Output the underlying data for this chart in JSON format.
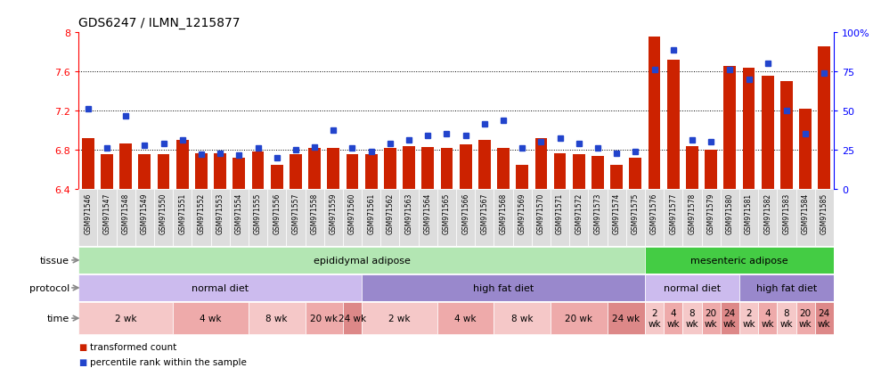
{
  "title": "GDS6247 / ILMN_1215877",
  "samples": [
    "GSM971546",
    "GSM971547",
    "GSM971548",
    "GSM971549",
    "GSM971550",
    "GSM971551",
    "GSM971552",
    "GSM971553",
    "GSM971554",
    "GSM971555",
    "GSM971556",
    "GSM971557",
    "GSM971558",
    "GSM971559",
    "GSM971560",
    "GSM971561",
    "GSM971562",
    "GSM971563",
    "GSM971564",
    "GSM971565",
    "GSM971566",
    "GSM971567",
    "GSM971568",
    "GSM971569",
    "GSM971570",
    "GSM971571",
    "GSM971572",
    "GSM971573",
    "GSM971574",
    "GSM971575",
    "GSM971576",
    "GSM971577",
    "GSM971578",
    "GSM971579",
    "GSM971580",
    "GSM971581",
    "GSM971582",
    "GSM971583",
    "GSM971584",
    "GSM971585"
  ],
  "bar_values": [
    6.92,
    6.76,
    6.87,
    6.76,
    6.76,
    6.9,
    6.77,
    6.77,
    6.72,
    6.78,
    6.65,
    6.76,
    6.82,
    6.82,
    6.76,
    6.76,
    6.82,
    6.84,
    6.83,
    6.82,
    6.86,
    6.9,
    6.82,
    6.65,
    6.92,
    6.77,
    6.76,
    6.74,
    6.65,
    6.72,
    7.96,
    7.72,
    6.84,
    6.8,
    7.66,
    7.64,
    7.56,
    7.5,
    7.22,
    7.86
  ],
  "percentile_values": [
    7.22,
    6.82,
    7.15,
    6.85,
    6.87,
    6.9,
    6.76,
    6.77,
    6.75,
    6.82,
    6.72,
    6.8,
    6.83,
    7.0,
    6.82,
    6.78,
    6.87,
    6.9,
    6.95,
    6.97,
    6.95,
    7.07,
    7.1,
    6.82,
    6.88,
    6.92,
    6.87,
    6.82,
    6.77,
    6.78,
    7.62,
    7.82,
    6.9,
    6.88,
    7.62,
    7.52,
    7.68,
    7.2,
    6.97,
    7.58
  ],
  "bar_color": "#cc2200",
  "dot_color": "#2244cc",
  "ymin": 6.4,
  "ymax": 8.0,
  "yticks_left": [
    6.4,
    6.8,
    7.2,
    7.6,
    8.0
  ],
  "yticks_right": [
    0,
    25,
    50,
    75,
    100
  ],
  "grid_values": [
    6.8,
    7.2,
    7.6
  ],
  "tissue_regions": [
    {
      "label": "epididymal adipose",
      "start": 0,
      "end": 30,
      "color": "#b3e6b3"
    },
    {
      "label": "mesenteric adipose",
      "start": 30,
      "end": 40,
      "color": "#44cc44"
    }
  ],
  "protocol_regions": [
    {
      "label": "normal diet",
      "start": 0,
      "end": 15,
      "color": "#ccbbee"
    },
    {
      "label": "high fat diet",
      "start": 15,
      "end": 30,
      "color": "#9988cc"
    },
    {
      "label": "normal diet",
      "start": 30,
      "end": 35,
      "color": "#ccbbee"
    },
    {
      "label": "high fat diet",
      "start": 35,
      "end": 40,
      "color": "#9988cc"
    }
  ],
  "time_regions": [
    {
      "label": "2 wk",
      "start": 0,
      "end": 5,
      "color": "#f5c8c8"
    },
    {
      "label": "4 wk",
      "start": 5,
      "end": 9,
      "color": "#eeaaaa"
    },
    {
      "label": "8 wk",
      "start": 9,
      "end": 12,
      "color": "#f5c8c8"
    },
    {
      "label": "20 wk",
      "start": 12,
      "end": 14,
      "color": "#eeaaaa"
    },
    {
      "label": "24 wk",
      "start": 14,
      "end": 15,
      "color": "#dd8888"
    },
    {
      "label": "2 wk",
      "start": 15,
      "end": 19,
      "color": "#f5c8c8"
    },
    {
      "label": "4 wk",
      "start": 19,
      "end": 22,
      "color": "#eeaaaa"
    },
    {
      "label": "8 wk",
      "start": 22,
      "end": 25,
      "color": "#f5c8c8"
    },
    {
      "label": "20 wk",
      "start": 25,
      "end": 28,
      "color": "#eeaaaa"
    },
    {
      "label": "24 wk",
      "start": 28,
      "end": 30,
      "color": "#dd8888"
    },
    {
      "label": "2\nwk",
      "start": 30,
      "end": 31,
      "color": "#f5c8c8"
    },
    {
      "label": "4\nwk",
      "start": 31,
      "end": 32,
      "color": "#eeaaaa"
    },
    {
      "label": "8\nwk",
      "start": 32,
      "end": 33,
      "color": "#f5c8c8"
    },
    {
      "label": "20\nwk",
      "start": 33,
      "end": 34,
      "color": "#eeaaaa"
    },
    {
      "label": "24\nwk",
      "start": 34,
      "end": 35,
      "color": "#dd8888"
    },
    {
      "label": "2\nwk",
      "start": 35,
      "end": 36,
      "color": "#f5c8c8"
    },
    {
      "label": "4\nwk",
      "start": 36,
      "end": 37,
      "color": "#eeaaaa"
    },
    {
      "label": "8\nwk",
      "start": 37,
      "end": 38,
      "color": "#f5c8c8"
    },
    {
      "label": "20\nwk",
      "start": 38,
      "end": 39,
      "color": "#eeaaaa"
    },
    {
      "label": "24\nwk",
      "start": 39,
      "end": 40,
      "color": "#dd8888"
    }
  ],
  "row_labels": [
    "tissue",
    "protocol",
    "time"
  ],
  "background_color": "#ffffff",
  "axis_bg_color": "#ffffff",
  "xtick_bg": "#dddddd",
  "legend_items": [
    {
      "label": "transformed count",
      "color": "#cc2200"
    },
    {
      "label": "percentile rank within the sample",
      "color": "#2244cc"
    }
  ]
}
